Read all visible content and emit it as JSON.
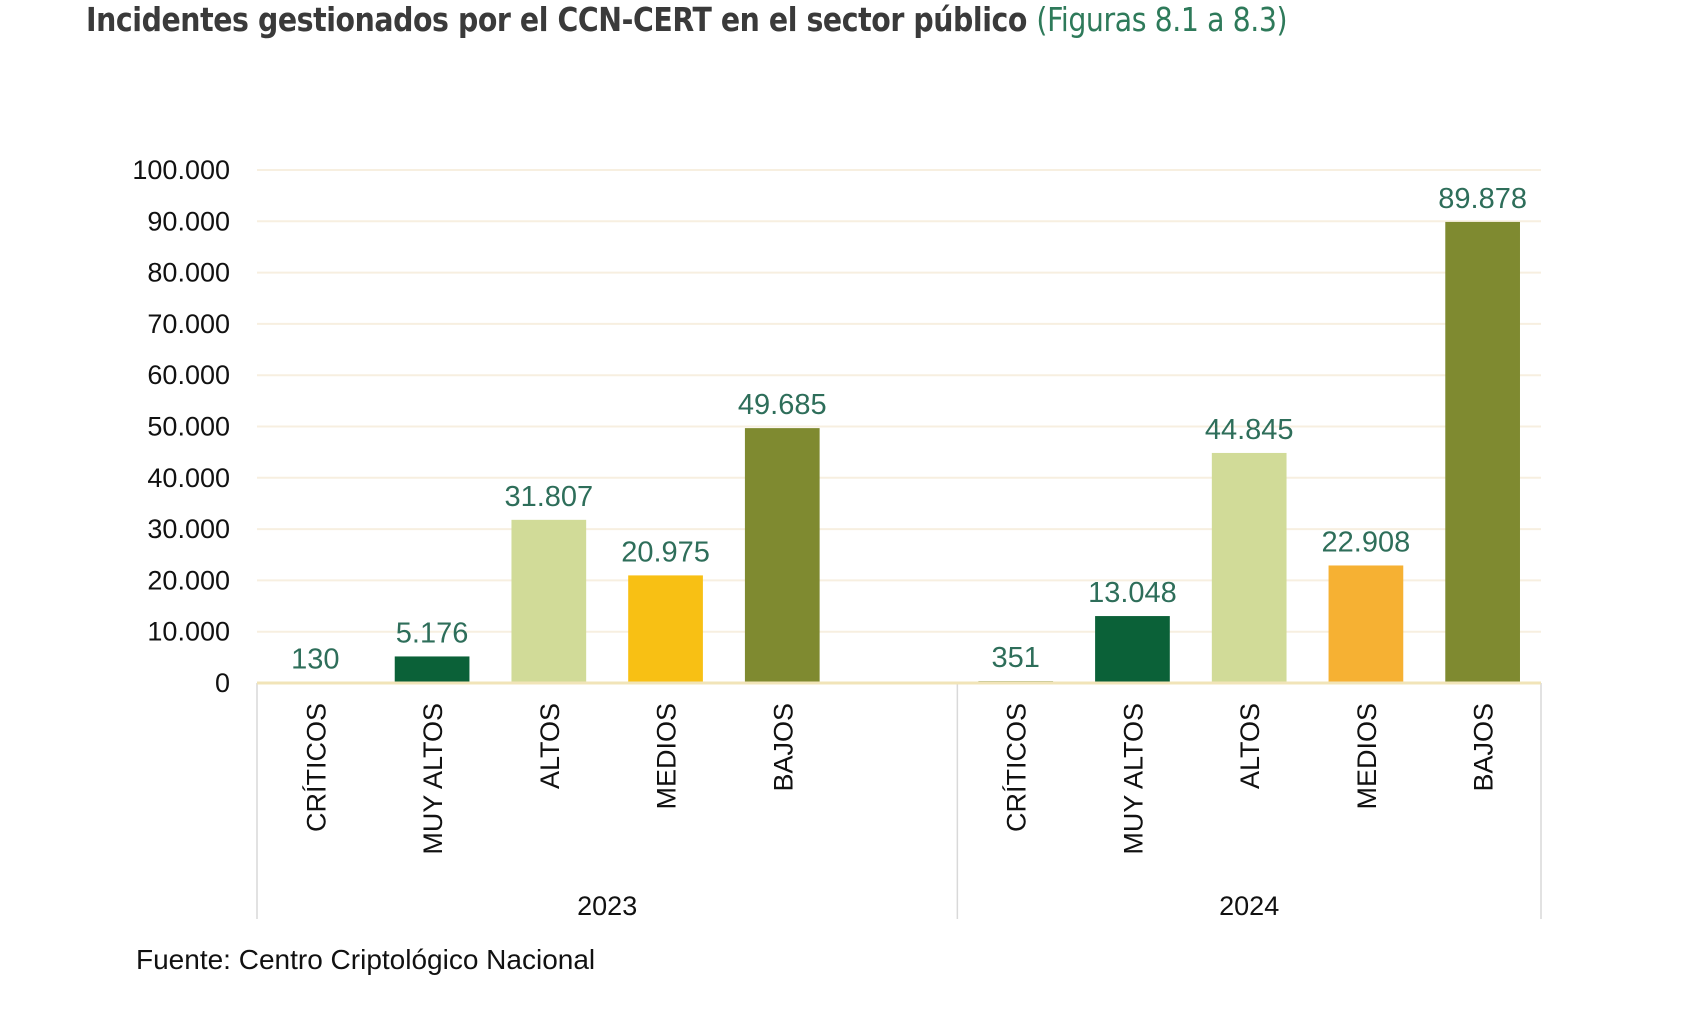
{
  "title": "Incidentes gestionados por el CCN-CERT en el sector público",
  "title_ref": "(Figuras 8.1 a 8.3)",
  "source": "Fuente: Centro Criptológico Nacional",
  "chart_data": {
    "type": "bar",
    "title": "Incidentes gestionados por el CCN-CERT en el sector público",
    "xlabel": "",
    "ylabel": "",
    "ylim": [
      0,
      100000
    ],
    "yticks": [
      0,
      10000,
      20000,
      30000,
      40000,
      50000,
      60000,
      70000,
      80000,
      90000,
      100000
    ],
    "ytick_labels": [
      "0",
      "10.000",
      "20.000",
      "30.000",
      "40.000",
      "50.000",
      "60.000",
      "70.000",
      "80.000",
      "90.000",
      "100.000"
    ],
    "grid": true,
    "groups": [
      {
        "name": "2023",
        "categories": [
          "CRÍTICOS",
          "MUY ALTOS",
          "ALTOS",
          "MEDIOS",
          "BAJOS"
        ],
        "values": [
          130,
          5176,
          31807,
          20975,
          49685
        ],
        "labels": [
          "130",
          "5.176",
          "31.807",
          "20.975",
          "49.685"
        ],
        "colors": [
          "#7f8a30",
          "#0b6138",
          "#d1db98",
          "#f8c014",
          "#7f8a30"
        ]
      },
      {
        "name": "2024",
        "categories": [
          "CRÍTICOS",
          "MUY ALTOS",
          "ALTOS",
          "MEDIOS",
          "BAJOS"
        ],
        "values": [
          351,
          13048,
          44845,
          22908,
          89878
        ],
        "labels": [
          "351",
          "13.048",
          "44.845",
          "22.908",
          "89.878"
        ],
        "colors": [
          "#7f8a30",
          "#0b6138",
          "#d1db98",
          "#f6b133",
          "#7f8a30"
        ]
      }
    ],
    "label_color": "#2e6e5a",
    "grid_color": "#f7efe0",
    "axis_color": "#f1e4b8"
  }
}
